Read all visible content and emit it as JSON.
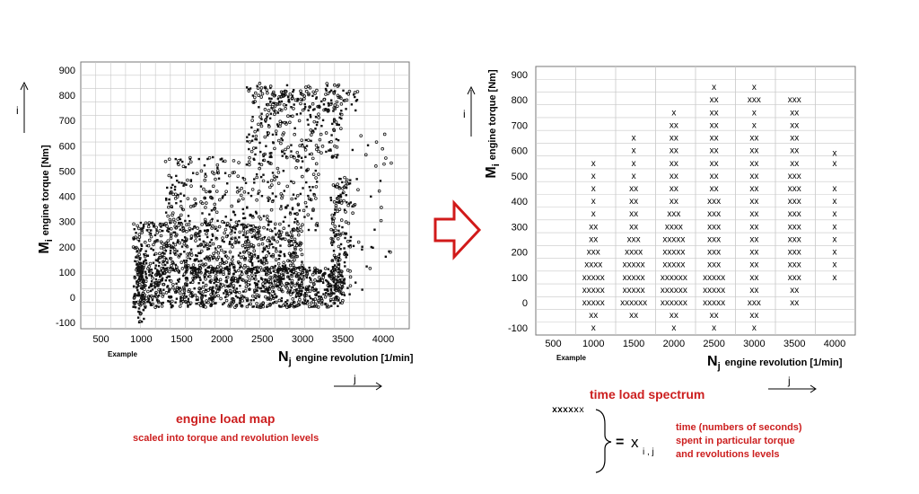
{
  "chart_data": [
    {
      "type": "scatter",
      "ylabel_main": "M",
      "ylabel_sub": "i",
      "ylabel_text": "engine torque [Nm]",
      "xlabel_main": "N",
      "xlabel_sub": "j",
      "xlabel_text": "engine revolution [1/min]",
      "y_ticks": [
        "900",
        "800",
        "700",
        "600",
        "500",
        "400",
        "300",
        "200",
        "100",
        "0",
        "-100"
      ],
      "x_ticks": [
        "500",
        "1000",
        "1500",
        "2000",
        "2500",
        "3000",
        "3500",
        "4000"
      ],
      "xlim": [
        300,
        4200
      ],
      "ylim": [
        -130,
        950
      ],
      "note": "Example",
      "grid": true
    },
    {
      "type": "table",
      "ylabel_main": "M",
      "ylabel_sub": "i",
      "ylabel_text": "engine torque [Nm]",
      "xlabel_main": "N",
      "xlabel_sub": "j",
      "xlabel_text": "engine revolution [1/min]",
      "y_ticks": [
        "900",
        "800",
        "700",
        "600",
        "500",
        "400",
        "300",
        "200",
        "100",
        "0",
        "-100"
      ],
      "x_ticks": [
        "500",
        "1000",
        "1500",
        "2000",
        "2500",
        "3000",
        "3500",
        "4000"
      ],
      "note": "Example",
      "grid": true,
      "columns": [
        {
          "rpm": 1000,
          "cells": [
            [
              550,
              "x"
            ],
            [
              500,
              "x"
            ],
            [
              450,
              "x"
            ],
            [
              400,
              "x"
            ],
            [
              350,
              "x"
            ],
            [
              300,
              "xx"
            ],
            [
              250,
              "xx"
            ],
            [
              200,
              "xxx"
            ],
            [
              150,
              "xxxx"
            ],
            [
              100,
              "xxxxx"
            ],
            [
              50,
              "xxxxx"
            ],
            [
              0,
              "xxxxx"
            ],
            [
              -50,
              "xx"
            ],
            [
              -100,
              "x"
            ]
          ]
        },
        {
          "rpm": 1500,
          "cells": [
            [
              650,
              "x"
            ],
            [
              600,
              "x"
            ],
            [
              550,
              "x"
            ],
            [
              500,
              "x"
            ],
            [
              450,
              "xx"
            ],
            [
              400,
              "xx"
            ],
            [
              350,
              "xx"
            ],
            [
              300,
              "xx"
            ],
            [
              250,
              "xxx"
            ],
            [
              200,
              "xxxx"
            ],
            [
              150,
              "xxxxx"
            ],
            [
              100,
              "xxxxx"
            ],
            [
              50,
              "xxxxx"
            ],
            [
              0,
              "xxxxxx"
            ],
            [
              -50,
              "xx"
            ]
          ]
        },
        {
          "rpm": 2000,
          "cells": [
            [
              750,
              "x"
            ],
            [
              700,
              "xx"
            ],
            [
              650,
              "xx"
            ],
            [
              600,
              "xx"
            ],
            [
              550,
              "xx"
            ],
            [
              500,
              "xx"
            ],
            [
              450,
              "xx"
            ],
            [
              400,
              "xx"
            ],
            [
              350,
              "xxx"
            ],
            [
              300,
              "xxxx"
            ],
            [
              250,
              "xxxxx"
            ],
            [
              200,
              "xxxxx"
            ],
            [
              150,
              "xxxxx"
            ],
            [
              100,
              "xxxxxx"
            ],
            [
              50,
              "xxxxxx"
            ],
            [
              0,
              "xxxxxx"
            ],
            [
              -50,
              "xx"
            ],
            [
              -100,
              "x"
            ]
          ]
        },
        {
          "rpm": 2500,
          "cells": [
            [
              850,
              "x"
            ],
            [
              800,
              "xx"
            ],
            [
              750,
              "xx"
            ],
            [
              700,
              "xx"
            ],
            [
              650,
              "xx"
            ],
            [
              600,
              "xx"
            ],
            [
              550,
              "xx"
            ],
            [
              500,
              "xx"
            ],
            [
              450,
              "xx"
            ],
            [
              400,
              "xxx"
            ],
            [
              350,
              "xxx"
            ],
            [
              300,
              "xxx"
            ],
            [
              250,
              "xxx"
            ],
            [
              200,
              "xxx"
            ],
            [
              150,
              "xxx"
            ],
            [
              100,
              "xxxxx"
            ],
            [
              50,
              "xxxxx"
            ],
            [
              0,
              "xxxxx"
            ],
            [
              -50,
              "xx"
            ],
            [
              -100,
              "x"
            ]
          ]
        },
        {
          "rpm": 3000,
          "cells": [
            [
              850,
              "x"
            ],
            [
              800,
              "xxx"
            ],
            [
              750,
              "x"
            ],
            [
              700,
              "x"
            ],
            [
              650,
              "xx"
            ],
            [
              600,
              "xx"
            ],
            [
              550,
              "xx"
            ],
            [
              500,
              "xx"
            ],
            [
              450,
              "xx"
            ],
            [
              400,
              "xx"
            ],
            [
              350,
              "xx"
            ],
            [
              300,
              "xx"
            ],
            [
              250,
              "xx"
            ],
            [
              200,
              "xx"
            ],
            [
              150,
              "xx"
            ],
            [
              100,
              "xx"
            ],
            [
              50,
              "xx"
            ],
            [
              0,
              "xxx"
            ],
            [
              -50,
              "xx"
            ],
            [
              -100,
              "x"
            ]
          ]
        },
        {
          "rpm": 3500,
          "cells": [
            [
              800,
              "xxx"
            ],
            [
              750,
              "xx"
            ],
            [
              700,
              "xx"
            ],
            [
              650,
              "xx"
            ],
            [
              600,
              "xx"
            ],
            [
              550,
              "xx"
            ],
            [
              500,
              "xxx"
            ],
            [
              450,
              "xxx"
            ],
            [
              400,
              "xxx"
            ],
            [
              350,
              "xxx"
            ],
            [
              300,
              "xxx"
            ],
            [
              250,
              "xxx"
            ],
            [
              200,
              "xxx"
            ],
            [
              150,
              "xxx"
            ],
            [
              100,
              "xxx"
            ],
            [
              50,
              "xx"
            ],
            [
              0,
              "xx"
            ]
          ]
        },
        {
          "rpm": 4000,
          "cells": [
            [
              590,
              "x"
            ],
            [
              550,
              "x"
            ],
            [
              450,
              "x"
            ],
            [
              400,
              "x"
            ],
            [
              350,
              "x"
            ],
            [
              300,
              "x"
            ],
            [
              250,
              "x"
            ],
            [
              200,
              "x"
            ],
            [
              150,
              "x"
            ],
            [
              100,
              "x"
            ]
          ]
        }
      ]
    }
  ],
  "labels": {
    "i": "i",
    "j": "j",
    "left_title": "engine load map",
    "left_subtitle": "scaled into torque and revolution levels",
    "right_title": "time load spectrum",
    "legend_rows": [
      "x",
      "xx",
      "xxx",
      "xxxx",
      "xxxxx",
      "xxxxxx"
    ],
    "equals": "=",
    "x_symbol": "x",
    "x_subscript": "i , j",
    "time_text": [
      "time (numbers of seconds)",
      "spent in particular torque",
      "and revolutions levels"
    ]
  },
  "colors": {
    "accent": "#cc1f1f",
    "grid": "#c8c8c8",
    "arrow": "#d11a1a"
  }
}
